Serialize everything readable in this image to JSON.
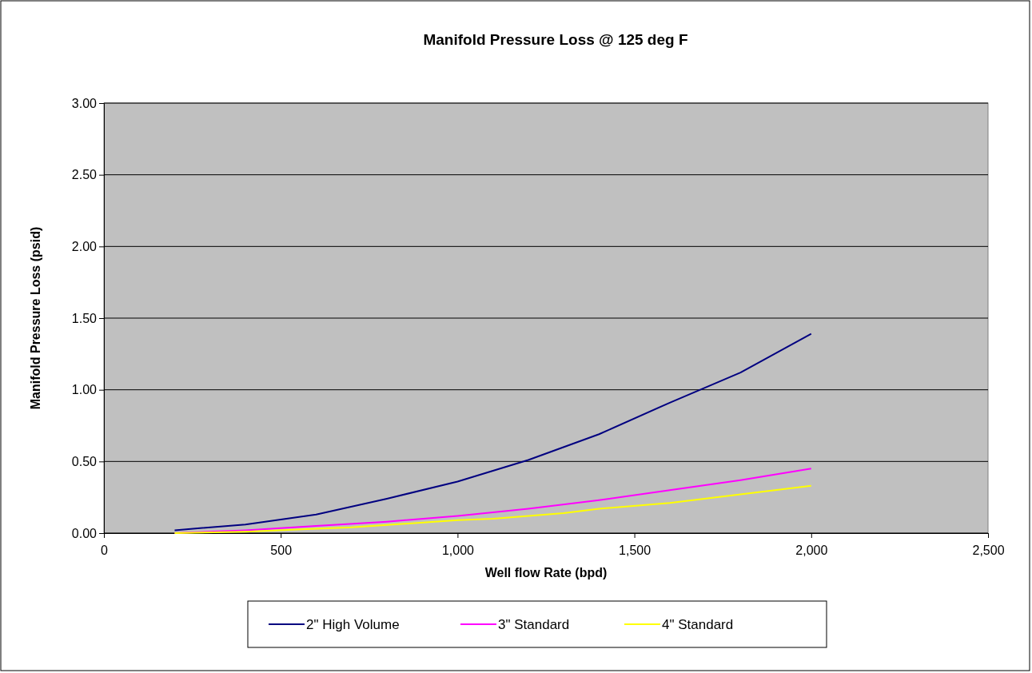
{
  "chart_data": {
    "type": "line",
    "title": "Manifold Pressure Loss @ 125 deg F",
    "xlabel": "Well flow Rate (bpd)",
    "ylabel": "Manifold Pressure Loss (psid)",
    "xlim": [
      0,
      2500
    ],
    "xticks": [
      0,
      500,
      {
        "value": 1000,
        "label": "1,000"
      },
      {
        "value": 1500,
        "label": "1,500"
      },
      {
        "value": 2000,
        "label": "2,000"
      },
      {
        "value": 2500,
        "label": "2,500"
      }
    ],
    "ylim": [
      0,
      3
    ],
    "yticks": [
      {
        "value": 0,
        "label": "0.00"
      },
      {
        "value": 0.5,
        "label": "0.50"
      },
      {
        "value": 1,
        "label": "1.00"
      },
      {
        "value": 1.5,
        "label": "1.50"
      },
      {
        "value": 2,
        "label": "2.00"
      },
      {
        "value": 2.5,
        "label": "2.50"
      },
      {
        "value": 3,
        "label": "3.00"
      }
    ],
    "grid": "y",
    "legend": "bottom",
    "marker": "none",
    "line_style": "solid",
    "series": [
      {
        "name": "2\" High Volume",
        "color": "#000080",
        "x": [
          200,
          400,
          600,
          800,
          1000,
          1200,
          1400,
          1600,
          1800,
          2000
        ],
        "values": [
          0.02,
          0.06,
          0.13,
          0.24,
          0.36,
          0.51,
          0.69,
          0.91,
          1.12,
          1.39
        ]
      },
      {
        "name": "3\" Standard",
        "color": "#ff00ff",
        "x": [
          200,
          400,
          600,
          800,
          1000,
          1200,
          1400,
          1600,
          1800,
          2000
        ],
        "values": [
          0.0,
          0.02,
          0.05,
          0.08,
          0.12,
          0.17,
          0.23,
          0.3,
          0.37,
          0.45
        ]
      },
      {
        "name": "4\" Standard",
        "color": "#ffff00",
        "x": [
          200,
          400,
          600,
          700,
          1000,
          1100,
          1300,
          1400,
          1600,
          1800,
          2000
        ],
        "values": [
          0.0,
          0.01,
          0.03,
          0.04,
          0.09,
          0.1,
          0.14,
          0.17,
          0.21,
          0.27,
          0.33
        ]
      }
    ]
  }
}
